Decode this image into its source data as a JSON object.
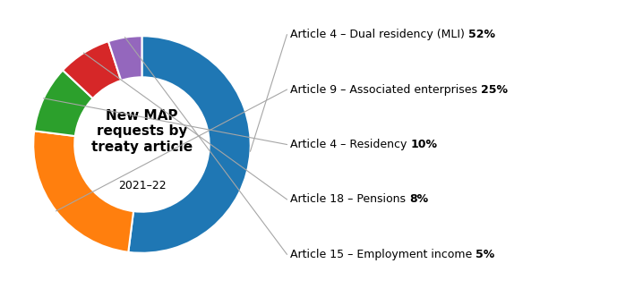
{
  "chart_data": {
    "type": "pie",
    "title": "New MAP\nrequests by\ntreaty article",
    "subtitle": "2021–22",
    "categories": [
      "Article 4 – Dual residency (MLI)",
      "Article 9 – Associated enterprises",
      "Article 4 – Residency",
      "Article 18 – Pensions",
      "Article 15 – Employment income"
    ],
    "values": [
      52,
      25,
      10,
      8,
      5
    ],
    "value_labels": [
      "52%",
      "25%",
      "10%",
      "8%",
      "5%"
    ],
    "data_labels": true
  }
}
